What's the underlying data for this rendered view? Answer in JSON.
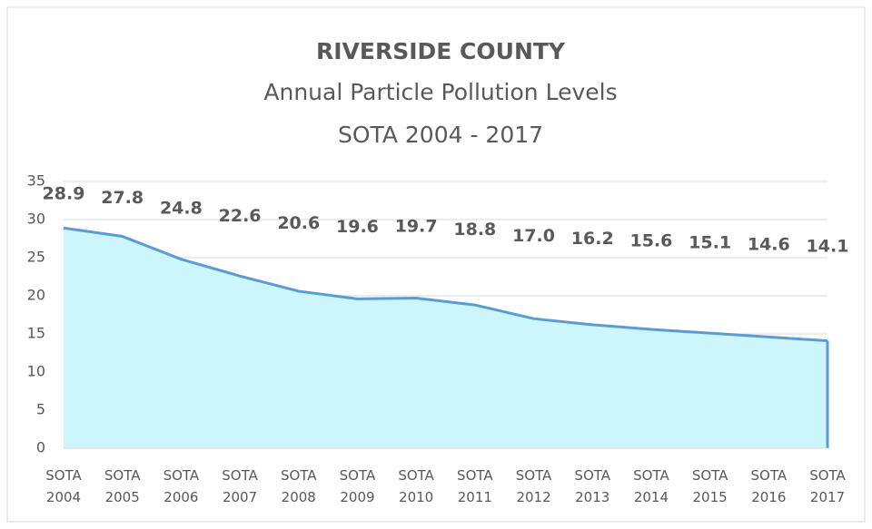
{
  "chart_data": {
    "type": "area",
    "title": "RIVERSIDE COUNTY",
    "subtitle": [
      "Annual Particle Pollution Levels",
      "SOTA 2004 - 2017"
    ],
    "categories": [
      "SOTA 2004",
      "SOTA 2005",
      "SOTA 2006",
      "SOTA 2007",
      "SOTA 2008",
      "SOTA 2009",
      "SOTA 2010",
      "SOTA 2011",
      "SOTA 2012",
      "SOTA 2013",
      "SOTA 2014",
      "SOTA 2015",
      "SOTA 2016",
      "SOTA 2017"
    ],
    "values": [
      28.9,
      27.8,
      24.8,
      22.6,
      20.6,
      19.6,
      19.7,
      18.8,
      17.0,
      16.2,
      15.6,
      15.1,
      14.6,
      14.1
    ],
    "value_labels": [
      "28.9",
      "27.8",
      "24.8",
      "22.6",
      "20.6",
      "19.6",
      "19.7",
      "18.8",
      "17.0",
      "16.2",
      "15.6",
      "15.1",
      "14.6",
      "14.1"
    ],
    "color": "#5b9bd5",
    "fill_color": "#ccf5fc",
    "ylim": [
      0,
      35
    ],
    "yticks": [
      0,
      5,
      10,
      15,
      20,
      25,
      30,
      35
    ],
    "grid": true
  }
}
